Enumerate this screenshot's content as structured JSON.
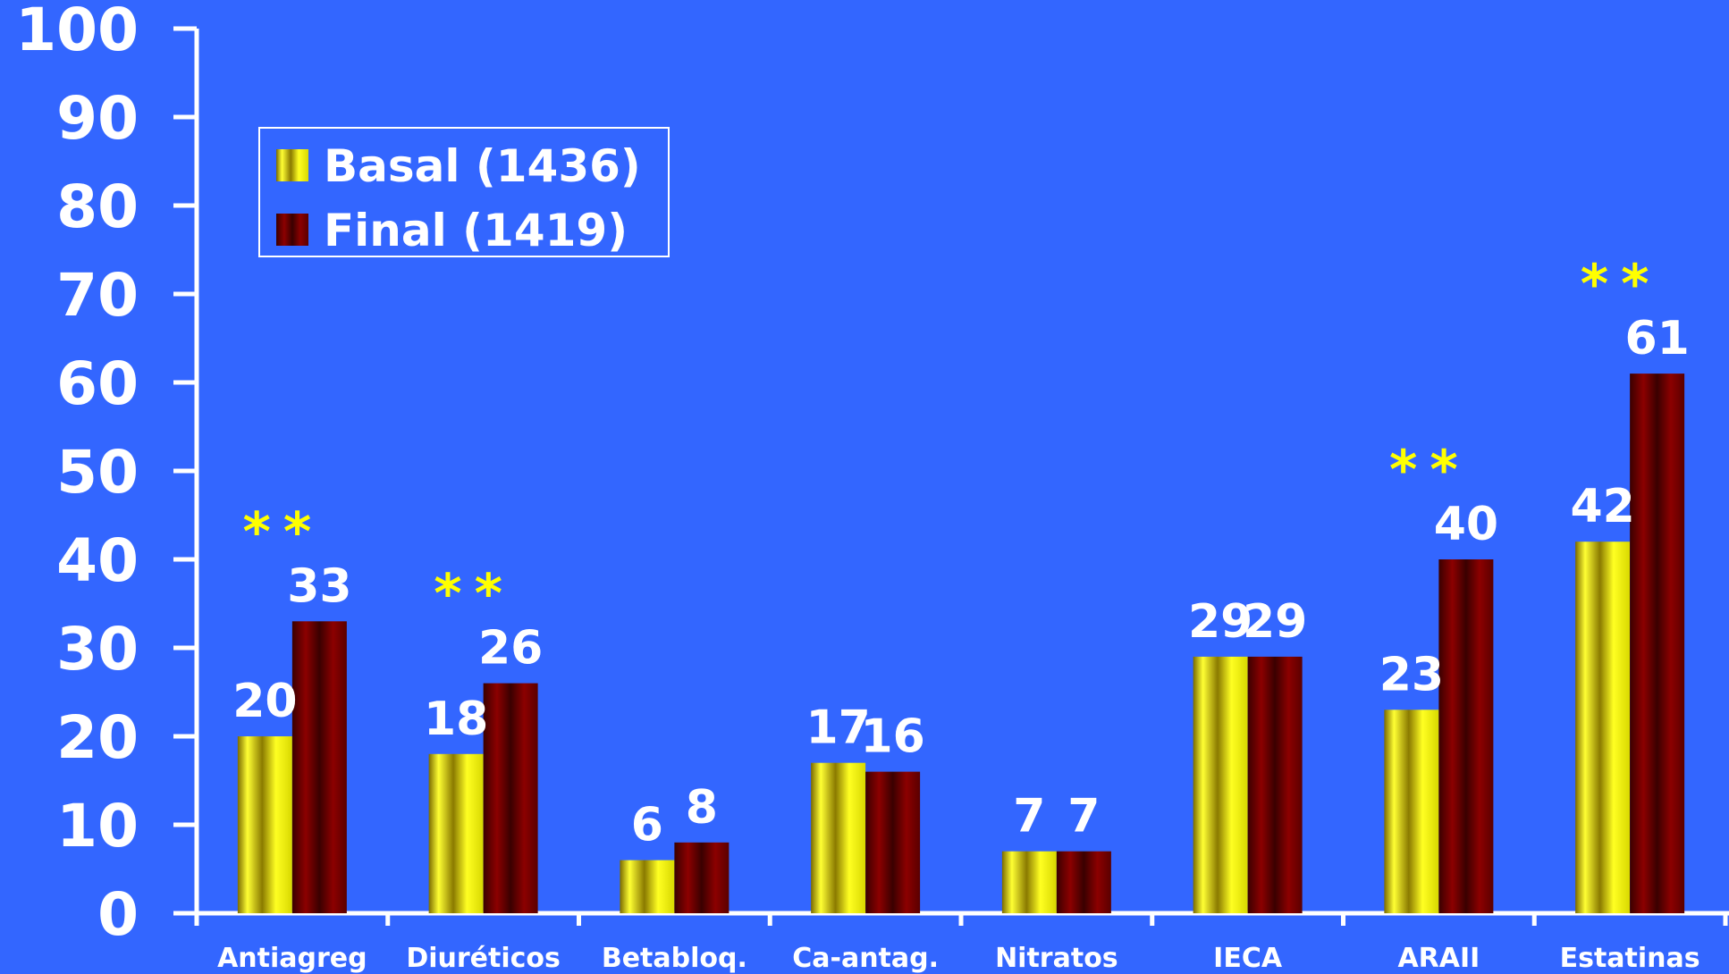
{
  "chart_data": {
    "type": "bar",
    "title": "",
    "xlabel": "",
    "ylabel": "",
    "ylim": [
      0,
      100
    ],
    "yticks": [
      "0",
      "10",
      "20",
      "30",
      "40",
      "50",
      "60",
      "70",
      "80",
      "90",
      "100"
    ],
    "categories": [
      "Antiagreg",
      "Diuréticos",
      "Betabloq.",
      "Ca-antag.",
      "Nitratos",
      "IECA",
      "ARAII",
      "Estatinas"
    ],
    "series": [
      {
        "name": "Basal (1436)",
        "values": [
          20,
          18,
          6,
          17,
          7,
          29,
          23,
          42
        ],
        "labels": [
          "20",
          "18",
          "6",
          "17",
          "7",
          "29",
          "23",
          "42"
        ]
      },
      {
        "name": "Final (1419)",
        "values": [
          33,
          26,
          8,
          16,
          7,
          29,
          40,
          61
        ],
        "labels": [
          "33",
          "26",
          "8",
          "16",
          "7",
          "29",
          "40",
          "61"
        ]
      }
    ],
    "significance": [
      {
        "category": "Antiagreg",
        "mark": "**"
      },
      {
        "category": "Diuréticos",
        "mark": "**"
      },
      {
        "category": "ARAII",
        "mark": "**"
      },
      {
        "category": "Estatinas",
        "mark": "**"
      }
    ],
    "legend": {
      "position": "top-left"
    },
    "grid": false,
    "colors": {
      "background": "#3366ff",
      "basal": "#ffff00",
      "final": "#800000",
      "axis": "#ffffff",
      "labels": "#ffffff",
      "significance": "#ffff00"
    }
  }
}
